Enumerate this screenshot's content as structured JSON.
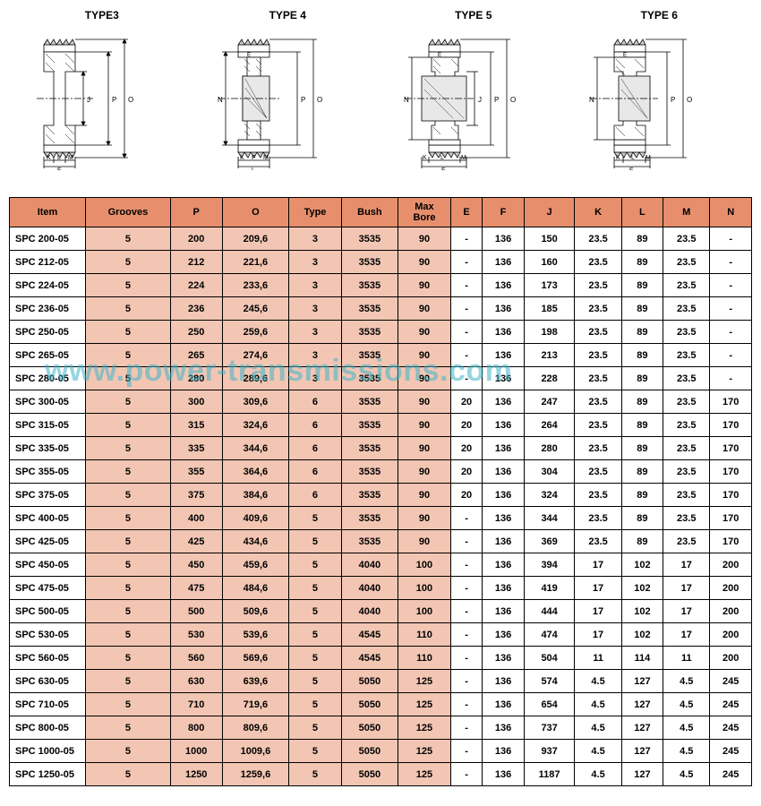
{
  "diagrams": {
    "labels": [
      "TYPE3",
      "TYPE 4",
      "TYPE 5",
      "TYPE 6"
    ]
  },
  "watermark": "www.power-transmissions.com",
  "table": {
    "headers": [
      "Item",
      "Grooves",
      "P",
      "O",
      "Type",
      "Bush",
      "Max Bore",
      "E",
      "F",
      "J",
      "K",
      "L",
      "M",
      "N"
    ],
    "shaded_cols": [
      1,
      2,
      3,
      4,
      5,
      6
    ],
    "rows": [
      [
        "SPC 200-05",
        "5",
        "200",
        "209,6",
        "3",
        "3535",
        "90",
        "-",
        "136",
        "150",
        "23.5",
        "89",
        "23.5",
        "-"
      ],
      [
        "SPC 212-05",
        "5",
        "212",
        "221,6",
        "3",
        "3535",
        "90",
        "-",
        "136",
        "160",
        "23.5",
        "89",
        "23.5",
        "-"
      ],
      [
        "SPC 224-05",
        "5",
        "224",
        "233,6",
        "3",
        "3535",
        "90",
        "-",
        "136",
        "173",
        "23.5",
        "89",
        "23.5",
        "-"
      ],
      [
        "SPC 236-05",
        "5",
        "236",
        "245,6",
        "3",
        "3535",
        "90",
        "-",
        "136",
        "185",
        "23.5",
        "89",
        "23.5",
        "-"
      ],
      [
        "SPC 250-05",
        "5",
        "250",
        "259,6",
        "3",
        "3535",
        "90",
        "-",
        "136",
        "198",
        "23.5",
        "89",
        "23.5",
        "-"
      ],
      [
        "SPC 265-05",
        "5",
        "265",
        "274,6",
        "3",
        "3535",
        "90",
        "-",
        "136",
        "213",
        "23.5",
        "89",
        "23.5",
        "-"
      ],
      [
        "SPC 280-05",
        "5",
        "280",
        "289,6",
        "3",
        "3535",
        "90",
        "-",
        "136",
        "228",
        "23.5",
        "89",
        "23.5",
        "-"
      ],
      [
        "SPC 300-05",
        "5",
        "300",
        "309,6",
        "6",
        "3535",
        "90",
        "20",
        "136",
        "247",
        "23.5",
        "89",
        "23.5",
        "170"
      ],
      [
        "SPC 315-05",
        "5",
        "315",
        "324,6",
        "6",
        "3535",
        "90",
        "20",
        "136",
        "264",
        "23.5",
        "89",
        "23.5",
        "170"
      ],
      [
        "SPC 335-05",
        "5",
        "335",
        "344,6",
        "6",
        "3535",
        "90",
        "20",
        "136",
        "280",
        "23.5",
        "89",
        "23.5",
        "170"
      ],
      [
        "SPC 355-05",
        "5",
        "355",
        "364,6",
        "6",
        "3535",
        "90",
        "20",
        "136",
        "304",
        "23.5",
        "89",
        "23.5",
        "170"
      ],
      [
        "SPC 375-05",
        "5",
        "375",
        "384,6",
        "6",
        "3535",
        "90",
        "20",
        "136",
        "324",
        "23.5",
        "89",
        "23.5",
        "170"
      ],
      [
        "SPC 400-05",
        "5",
        "400",
        "409,6",
        "5",
        "3535",
        "90",
        "-",
        "136",
        "344",
        "23.5",
        "89",
        "23.5",
        "170"
      ],
      [
        "SPC 425-05",
        "5",
        "425",
        "434,6",
        "5",
        "3535",
        "90",
        "-",
        "136",
        "369",
        "23.5",
        "89",
        "23.5",
        "170"
      ],
      [
        "SPC 450-05",
        "5",
        "450",
        "459,6",
        "5",
        "4040",
        "100",
        "-",
        "136",
        "394",
        "17",
        "102",
        "17",
        "200"
      ],
      [
        "SPC 475-05",
        "5",
        "475",
        "484,6",
        "5",
        "4040",
        "100",
        "-",
        "136",
        "419",
        "17",
        "102",
        "17",
        "200"
      ],
      [
        "SPC 500-05",
        "5",
        "500",
        "509,6",
        "5",
        "4040",
        "100",
        "-",
        "136",
        "444",
        "17",
        "102",
        "17",
        "200"
      ],
      [
        "SPC 530-05",
        "5",
        "530",
        "539,6",
        "5",
        "4545",
        "110",
        "-",
        "136",
        "474",
        "17",
        "102",
        "17",
        "200"
      ],
      [
        "SPC 560-05",
        "5",
        "560",
        "569,6",
        "5",
        "4545",
        "110",
        "-",
        "136",
        "504",
        "11",
        "114",
        "11",
        "200"
      ],
      [
        "SPC 630-05",
        "5",
        "630",
        "639,6",
        "5",
        "5050",
        "125",
        "-",
        "136",
        "574",
        "4.5",
        "127",
        "4.5",
        "245"
      ],
      [
        "SPC 710-05",
        "5",
        "710",
        "719,6",
        "5",
        "5050",
        "125",
        "-",
        "136",
        "654",
        "4.5",
        "127",
        "4.5",
        "245"
      ],
      [
        "SPC 800-05",
        "5",
        "800",
        "809,6",
        "5",
        "5050",
        "125",
        "-",
        "136",
        "737",
        "4.5",
        "127",
        "4.5",
        "245"
      ],
      [
        "SPC 1000-05",
        "5",
        "1000",
        "1009,6",
        "5",
        "5050",
        "125",
        "-",
        "136",
        "937",
        "4.5",
        "127",
        "4.5",
        "245"
      ],
      [
        "SPC 1250-05",
        "5",
        "1250",
        "1259,6",
        "5",
        "5050",
        "125",
        "-",
        "136",
        "1187",
        "4.5",
        "127",
        "4.5",
        "245"
      ]
    ]
  }
}
